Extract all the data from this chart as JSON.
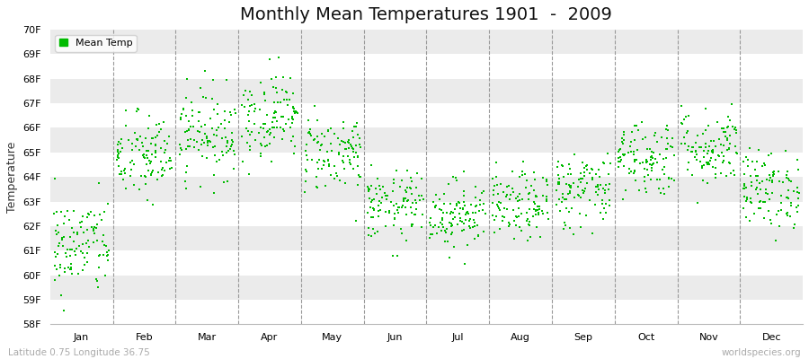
{
  "title": "Monthly Mean Temperatures 1901  -  2009",
  "ylabel": "Temperature",
  "xlabel_labels": [
    "Jan",
    "Feb",
    "Mar",
    "Apr",
    "May",
    "Jun",
    "Jul",
    "Aug",
    "Sep",
    "Oct",
    "Nov",
    "Dec"
  ],
  "ytick_labels": [
    "58F",
    "59F",
    "60F",
    "61F",
    "62F",
    "63F",
    "64F",
    "65F",
    "66F",
    "67F",
    "68F",
    "69F",
    "70F"
  ],
  "ytick_values": [
    58,
    59,
    60,
    61,
    62,
    63,
    64,
    65,
    66,
    67,
    68,
    69,
    70
  ],
  "dot_color": "#00bb00",
  "bg_color": "#ffffff",
  "plot_bg_color": "#ffffff",
  "stripe_color": "#ebebeb",
  "legend_label": "Mean Temp",
  "footer_left": "Latitude 0.75 Longitude 36.75",
  "footer_right": "worldspecies.org",
  "title_fontsize": 14,
  "axis_label_fontsize": 9,
  "tick_fontsize": 8,
  "footer_fontsize": 7.5,
  "years": 109,
  "monthly_means": [
    61.2,
    64.8,
    65.8,
    66.5,
    65.0,
    62.8,
    62.5,
    62.8,
    63.5,
    64.8,
    65.2,
    63.5
  ],
  "monthly_stds": [
    1.0,
    0.9,
    0.9,
    0.9,
    0.8,
    0.7,
    0.7,
    0.7,
    0.8,
    0.8,
    0.8,
    0.8
  ],
  "seed": 42
}
